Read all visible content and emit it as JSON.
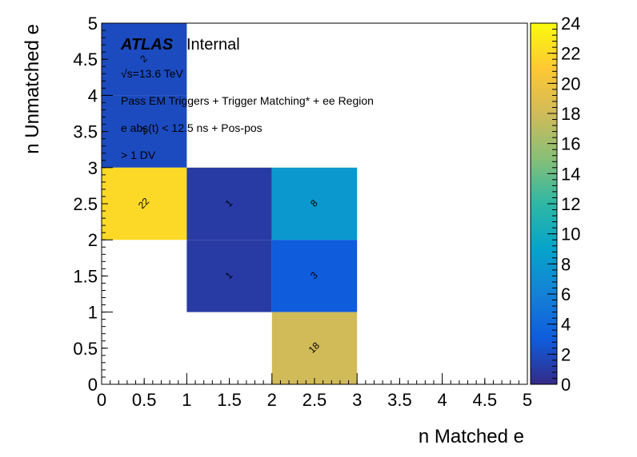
{
  "chart_data": {
    "type": "heatmap",
    "xlabel": "n Matched e",
    "ylabel": "n Unmatched e",
    "xlim": [
      0,
      5
    ],
    "ylim": [
      0,
      5
    ],
    "x_ticks": [
      "0",
      "0.5",
      "1",
      "1.5",
      "2",
      "2.5",
      "3",
      "3.5",
      "4",
      "4.5",
      "5"
    ],
    "y_ticks": [
      "0",
      "0.5",
      "1",
      "1.5",
      "2",
      "2.5",
      "3",
      "3.5",
      "4",
      "4.5",
      "5"
    ],
    "bin_width": 1,
    "bins": [
      {
        "x": 0,
        "y": 3,
        "value": 2,
        "label": "2"
      },
      {
        "x": 0,
        "y": 4,
        "value": 2,
        "label": "2"
      },
      {
        "x": 0,
        "y": 2,
        "value": 22,
        "label": "22"
      },
      {
        "x": 1,
        "y": 2,
        "value": 1,
        "label": "1"
      },
      {
        "x": 2,
        "y": 2,
        "value": 8,
        "label": "8"
      },
      {
        "x": 1,
        "y": 1,
        "value": 1,
        "label": "1"
      },
      {
        "x": 2,
        "y": 1,
        "value": 3,
        "label": "3"
      },
      {
        "x": 2,
        "y": 0,
        "value": 18,
        "label": "18"
      }
    ],
    "zlim": [
      0,
      24
    ],
    "z_ticks": [
      "0",
      "2",
      "4",
      "6",
      "8",
      "10",
      "12",
      "14",
      "16",
      "18",
      "20",
      "22",
      "24"
    ],
    "colormap": [
      "#352a87",
      "#0f5cdd",
      "#1481d6",
      "#06a4ca",
      "#2eb7a4",
      "#87bf77",
      "#d1bb59",
      "#fec832",
      "#f9fb0e"
    ],
    "grid": false,
    "annotations": {
      "experiment": "ATLAS",
      "status": "Internal",
      "energy": "√s=13.6 TeV",
      "selection_1": "Pass EM Triggers + Trigger Matching* + ee Region",
      "selection_2": "e abs(t) < 12.5 ns + Pos-pos",
      "selection_3": "> 1 DV"
    }
  }
}
